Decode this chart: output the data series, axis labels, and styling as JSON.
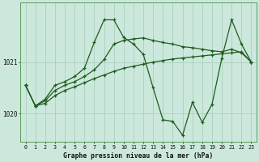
{
  "title": "Graphe pression niveau de la mer (hPa)",
  "background_color": "#cce8dc",
  "grid_color": "#aacfbe",
  "line_color": "#1e5c1e",
  "x_min": -0.5,
  "x_max": 23.5,
  "y_min": 1019.45,
  "y_max": 1022.15,
  "yticks": [
    1020,
    1021
  ],
  "xticks": [
    0,
    1,
    2,
    3,
    4,
    5,
    6,
    7,
    8,
    9,
    10,
    11,
    12,
    13,
    14,
    15,
    16,
    17,
    18,
    19,
    20,
    21,
    22,
    23
  ],
  "series": [
    {
      "x": [
        0,
        1,
        2,
        3,
        4,
        5,
        6,
        7,
        8,
        9,
        10,
        11,
        12,
        13,
        14,
        15,
        16,
        17,
        18,
        19,
        20,
        21,
        22,
        23
      ],
      "y": [
        1020.55,
        1020.15,
        1020.2,
        1020.35,
        1020.45,
        1020.52,
        1020.6,
        1020.68,
        1020.75,
        1020.82,
        1020.88,
        1020.92,
        1020.96,
        1021.0,
        1021.03,
        1021.06,
        1021.08,
        1021.1,
        1021.12,
        1021.14,
        1021.16,
        1021.18,
        1021.2,
        1021.0
      ]
    },
    {
      "x": [
        0,
        1,
        2,
        3,
        4,
        5,
        6,
        7,
        8,
        9,
        10,
        11,
        12,
        13,
        14,
        15,
        16,
        17,
        18,
        19,
        20,
        21,
        22,
        23
      ],
      "y": [
        1020.55,
        1020.15,
        1020.25,
        1020.45,
        1020.55,
        1020.62,
        1020.72,
        1020.85,
        1021.05,
        1021.35,
        1021.42,
        1021.45,
        1021.47,
        1021.42,
        1021.38,
        1021.35,
        1021.3,
        1021.28,
        1021.25,
        1021.22,
        1021.2,
        1021.25,
        1021.18,
        1021.0
      ]
    },
    {
      "x": [
        0,
        1,
        2,
        3,
        4,
        5,
        6,
        7,
        8,
        9,
        10,
        11,
        12,
        13,
        14,
        15,
        16,
        17,
        18,
        19,
        20,
        21,
        22,
        23
      ],
      "y": [
        1020.55,
        1020.15,
        1020.28,
        1020.55,
        1020.62,
        1020.72,
        1020.88,
        1021.38,
        1021.82,
        1021.82,
        1021.48,
        1021.35,
        1021.15,
        1020.5,
        1019.88,
        1019.85,
        1019.58,
        1020.22,
        1019.83,
        1020.18,
        1021.08,
        1021.82,
        1021.35,
        1021.0
      ]
    }
  ]
}
